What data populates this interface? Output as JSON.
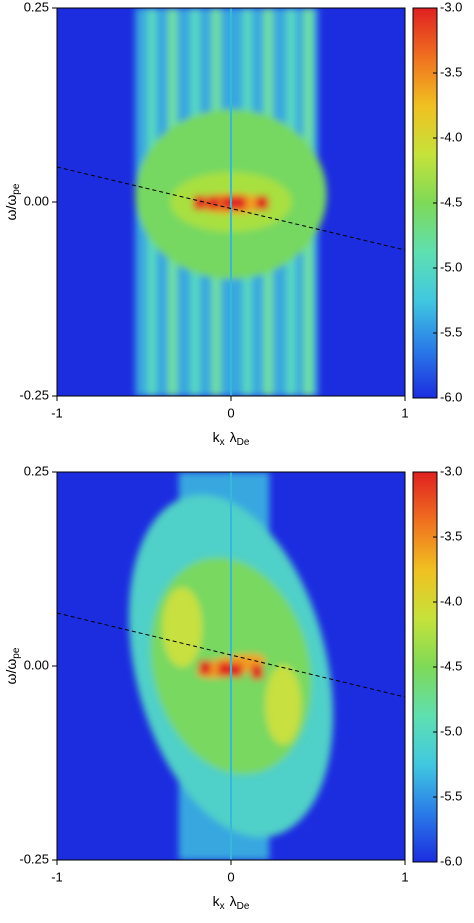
{
  "chart_data": [
    {
      "type": "heatmap",
      "xlabel": [
        "k",
        "x",
        "λ",
        "De"
      ],
      "ylabel": [
        "ω/ω",
        "pe"
      ],
      "xlim": [
        -1,
        1
      ],
      "xticks": [
        -1,
        0,
        1
      ],
      "ylim": [
        -0.25,
        0.25
      ],
      "yticks": [
        -0.25,
        {
          "value": 0,
          "label": "0.00"
        },
        0.25
      ],
      "clim": [
        -6,
        -3
      ],
      "cticks": [
        {
          "value": -6,
          "label": "-6.0"
        },
        -5.5,
        {
          "value": -5,
          "label": "-5.0"
        },
        -4.5,
        {
          "value": -4,
          "label": "-4.0"
        },
        -3.5,
        {
          "value": -3,
          "label": "-3.0"
        }
      ],
      "colormap": [
        "#1c2de0",
        "#2a7be8",
        "#40c8e0",
        "#5fe0b0",
        "#7ed957",
        "#c6e23a",
        "#f0c020",
        "#f07020",
        "#e02020"
      ]
    },
    {
      "type": "heatmap",
      "xlabel": [
        "k",
        "x",
        "λ",
        "De"
      ],
      "ylabel": [
        "ω/ω",
        "pe"
      ],
      "xlim": [
        -1,
        1
      ],
      "xticks": [
        -1,
        0,
        1
      ],
      "ylim": [
        -0.25,
        0.25
      ],
      "yticks": [
        -0.25,
        {
          "value": 0,
          "label": "0.00"
        },
        0.25
      ],
      "clim": [
        -6,
        -3
      ],
      "cticks": [
        {
          "value": -6,
          "label": "-6.0"
        },
        -5.5,
        {
          "value": -5,
          "label": "-5.0"
        },
        -4.5,
        {
          "value": -4,
          "label": "-4.0"
        },
        -3.5,
        {
          "value": -3,
          "label": "-3.0"
        }
      ],
      "colormap": [
        "#1c2de0",
        "#2a7be8",
        "#40c8e0",
        "#5fe0b0",
        "#7ed957",
        "#c6e23a",
        "#f0c020",
        "#f07020",
        "#e02020"
      ]
    }
  ]
}
